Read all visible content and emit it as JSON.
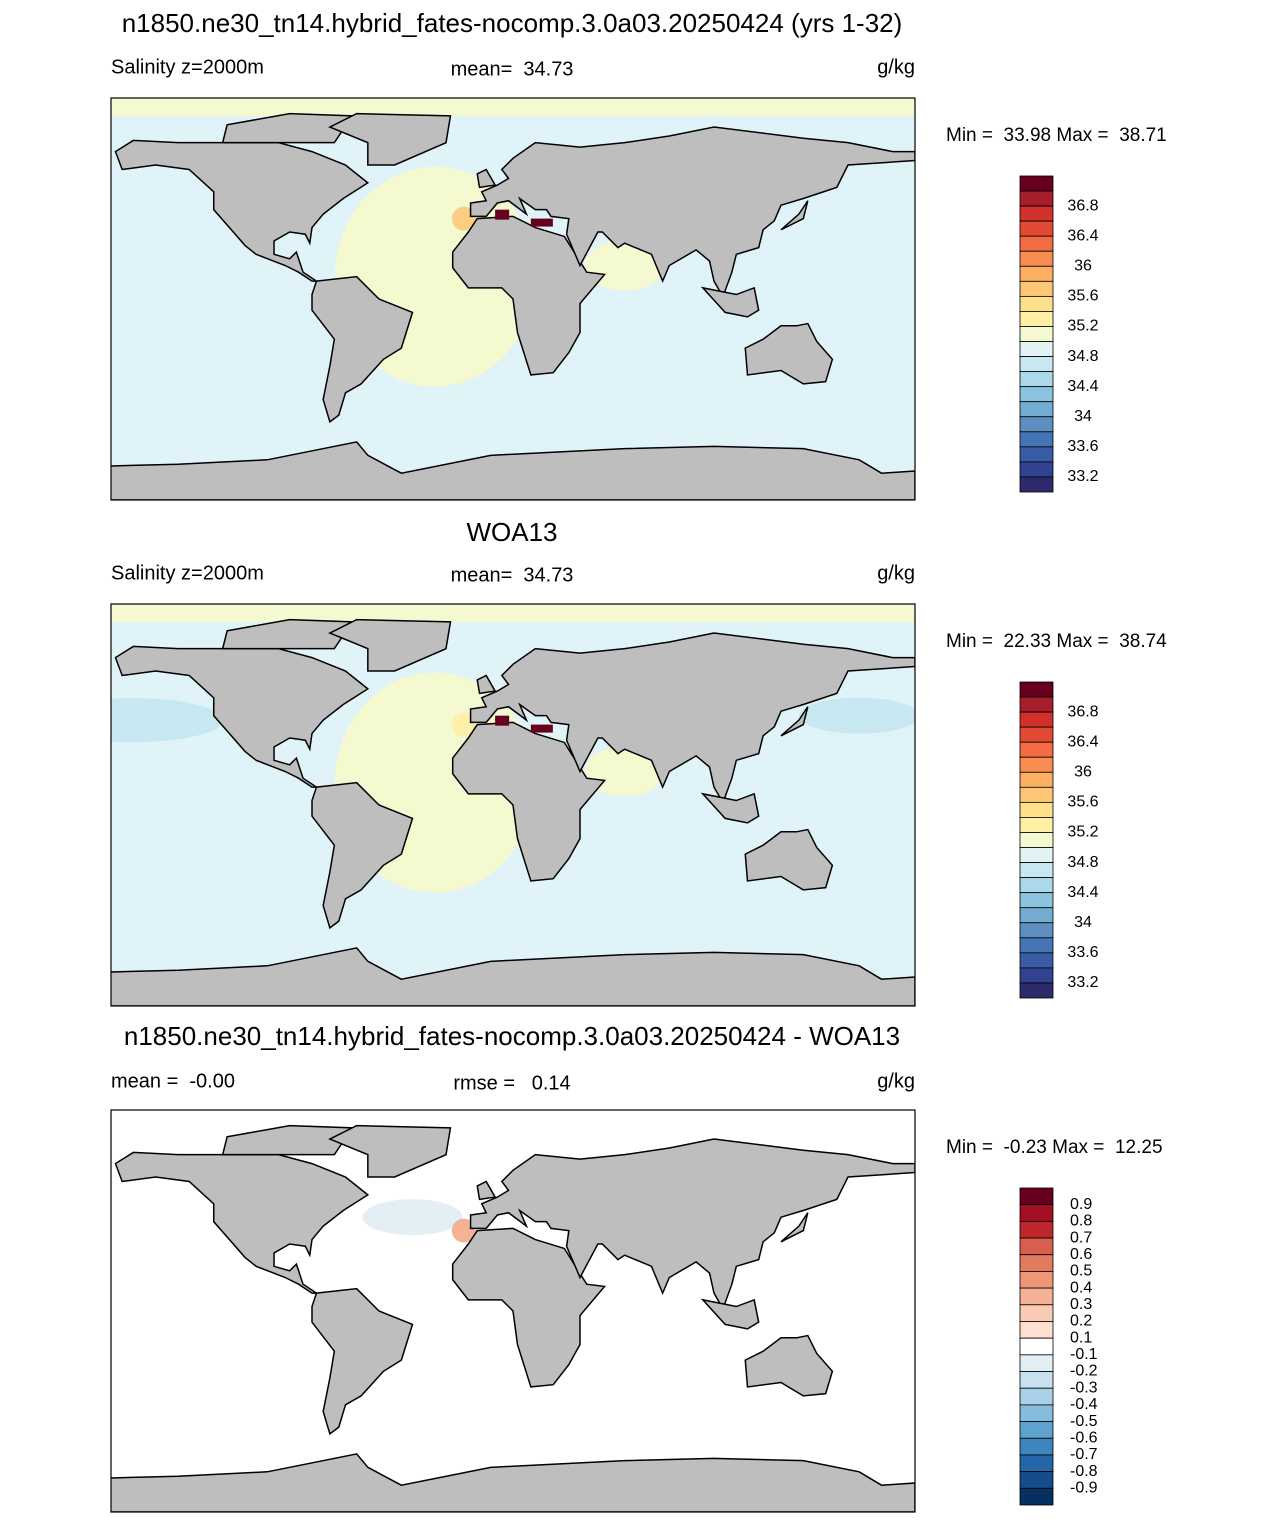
{
  "panels": [
    {
      "title": "n1850.ne30_tn14.hybrid_fates-nocomp.3.0a03.20250424 (yrs 1-32)",
      "left": "Salinity z=2000m",
      "center": "mean=  34.73",
      "right": "g/kg",
      "range": "Min =  33.98 Max =  38.71",
      "colorbar": {
        "colors": [
          "#67001f",
          "#a61d2b",
          "#d0312d",
          "#e34a33",
          "#f26b43",
          "#f88d52",
          "#fcae61",
          "#fdc776",
          "#fee08b",
          "#feefa5",
          "#f5f9cf",
          "#e3f3f3",
          "#c7e8f0",
          "#abd9e9",
          "#8cc3de",
          "#74add1",
          "#5d8fc2",
          "#4575b4",
          "#3a5ca4",
          "#31438f",
          "#2c2a6a"
        ],
        "labels": [
          "36.8",
          "36.4",
          "36",
          "35.6",
          "35.2",
          "34.8",
          "34.4",
          "34",
          "33.6",
          "33.2"
        ]
      }
    },
    {
      "title": "WOA13",
      "left": "Salinity z=2000m",
      "center": "mean=  34.73",
      "right": "g/kg",
      "range": "Min =  22.33 Max =  38.74",
      "colorbar": {
        "colors": [
          "#67001f",
          "#a61d2b",
          "#d0312d",
          "#e34a33",
          "#f26b43",
          "#f88d52",
          "#fcae61",
          "#fdc776",
          "#fee08b",
          "#feefa5",
          "#f5f9cf",
          "#e3f3f3",
          "#c7e8f0",
          "#abd9e9",
          "#8cc3de",
          "#74add1",
          "#5d8fc2",
          "#4575b4",
          "#3a5ca4",
          "#31438f",
          "#2c2a6a"
        ],
        "labels": [
          "36.8",
          "36.4",
          "36",
          "35.6",
          "35.2",
          "34.8",
          "34.4",
          "34",
          "33.6",
          "33.2"
        ]
      }
    },
    {
      "title": "n1850.ne30_tn14.hybrid_fates-nocomp.3.0a03.20250424 - WOA13",
      "left": "mean =  -0.00",
      "center": "rmse =   0.14",
      "right": "g/kg",
      "range": "Min =  -0.23 Max =  12.25",
      "colorbar": {
        "colors": [
          "#67001f",
          "#a50f26",
          "#c0272d",
          "#d6604d",
          "#e27a60",
          "#ee9677",
          "#f4b196",
          "#f9cbb4",
          "#fde0d2",
          "#ffffff",
          "#e4eff5",
          "#c9e1ee",
          "#a9d0e6",
          "#86bcdc",
          "#5fa2cd",
          "#3c85be",
          "#2466a8",
          "#164c8a",
          "#053061"
        ],
        "labels": [
          "0.9",
          "0.8",
          "0.7",
          "0.6",
          "0.5",
          "0.4",
          "0.3",
          "0.2",
          "0.1",
          "-0.1",
          "-0.2",
          "-0.3",
          "-0.4",
          "-0.5",
          "-0.6",
          "-0.7",
          "-0.8",
          "-0.9"
        ]
      }
    }
  ]
}
